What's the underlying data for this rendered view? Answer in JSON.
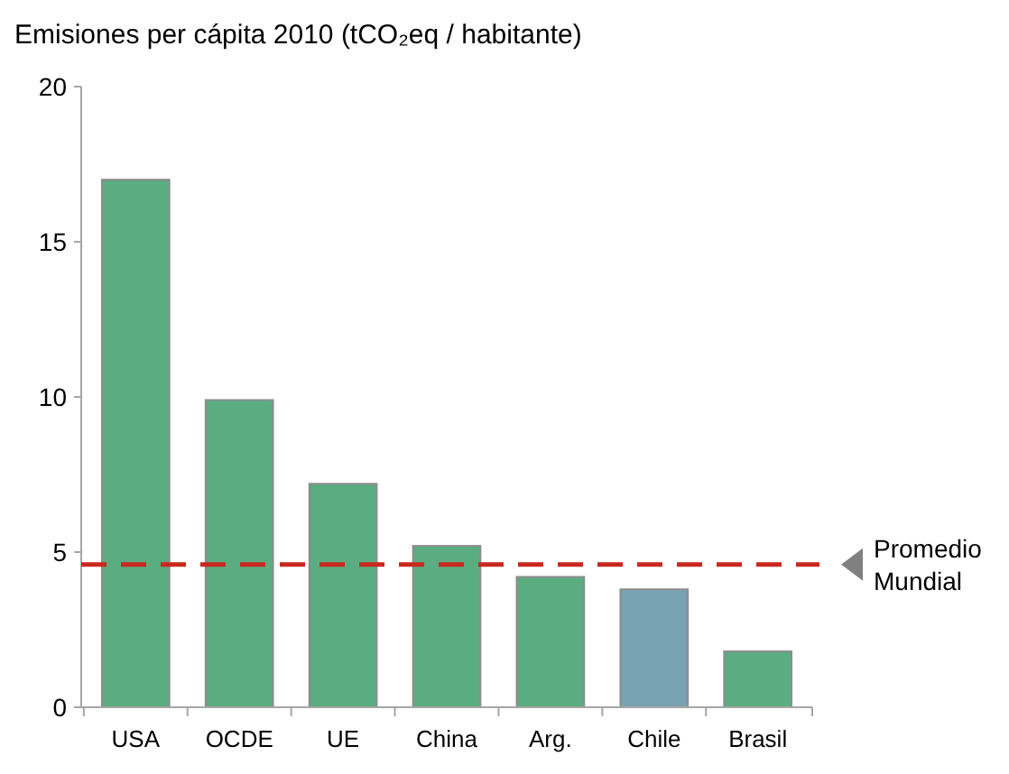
{
  "chart_data": {
    "type": "bar",
    "title": "Emisiones per cápita 2010 (tCO₂eq / habitante)",
    "categories": [
      "USA",
      "OCDE",
      "UE",
      "China",
      "Arg.",
      "Chile",
      "Brasil"
    ],
    "values": [
      17,
      9.9,
      7.2,
      5.2,
      4.2,
      3.8,
      1.8
    ],
    "colors": [
      "#5aad80",
      "#5aad80",
      "#5aad80",
      "#5aad80",
      "#5aad80",
      "#78a3b0",
      "#5aad80"
    ],
    "ylim": [
      0,
      20
    ],
    "yticks": [
      0,
      5,
      10,
      15,
      20
    ],
    "grid": false,
    "ref_lines": [
      {
        "axis": "y",
        "value": 4.6,
        "label": "Promedio Mundial",
        "color": "#c8281e",
        "line_style": "dashed"
      }
    ]
  }
}
